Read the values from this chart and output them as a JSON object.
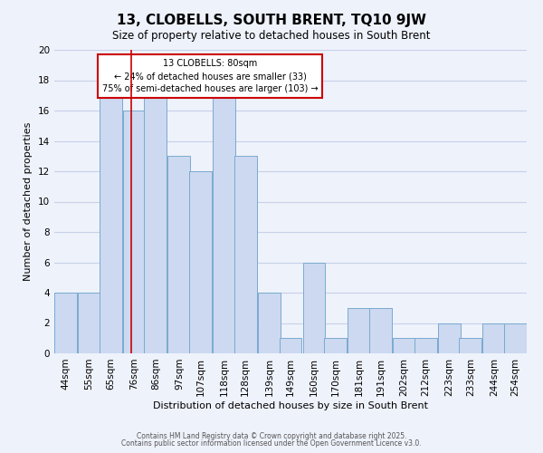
{
  "title": "13, CLOBELLS, SOUTH BRENT, TQ10 9JW",
  "subtitle": "Size of property relative to detached houses in South Brent",
  "xlabel": "Distribution of detached houses by size in South Brent",
  "ylabel": "Number of detached properties",
  "bin_labels": [
    "44sqm",
    "55sqm",
    "65sqm",
    "76sqm",
    "86sqm",
    "97sqm",
    "107sqm",
    "118sqm",
    "128sqm",
    "139sqm",
    "149sqm",
    "160sqm",
    "170sqm",
    "181sqm",
    "191sqm",
    "202sqm",
    "212sqm",
    "223sqm",
    "233sqm",
    "244sqm",
    "254sqm"
  ],
  "bin_edges": [
    44,
    55,
    65,
    76,
    86,
    97,
    107,
    118,
    128,
    139,
    149,
    160,
    170,
    181,
    191,
    202,
    212,
    223,
    233,
    244,
    254
  ],
  "values": [
    4,
    4,
    17,
    16,
    17,
    13,
    12,
    17,
    13,
    4,
    1,
    6,
    1,
    3,
    3,
    1,
    1,
    2,
    1,
    2,
    2
  ],
  "bar_color": "#ccd9f0",
  "bar_edgecolor": "#7aaad0",
  "vline_x": 80,
  "vline_color": "#cc0000",
  "annotation_line1": "13 CLOBELLS: 80sqm",
  "annotation_line2": "← 24% of detached houses are smaller (33)",
  "annotation_line3": "75% of semi-detached houses are larger (103) →",
  "ylim": [
    0,
    20
  ],
  "yticks": [
    0,
    2,
    4,
    6,
    8,
    10,
    12,
    14,
    16,
    18,
    20
  ],
  "footer1": "Contains HM Land Registry data © Crown copyright and database right 2025.",
  "footer2": "Contains public sector information licensed under the Open Government Licence v3.0.",
  "background_color": "#eef2fb",
  "grid_color": "#c8d0e8",
  "title_fontsize": 11,
  "subtitle_fontsize": 8.5,
  "label_fontsize": 8,
  "tick_fontsize": 7.5,
  "footer_fontsize": 5.5
}
